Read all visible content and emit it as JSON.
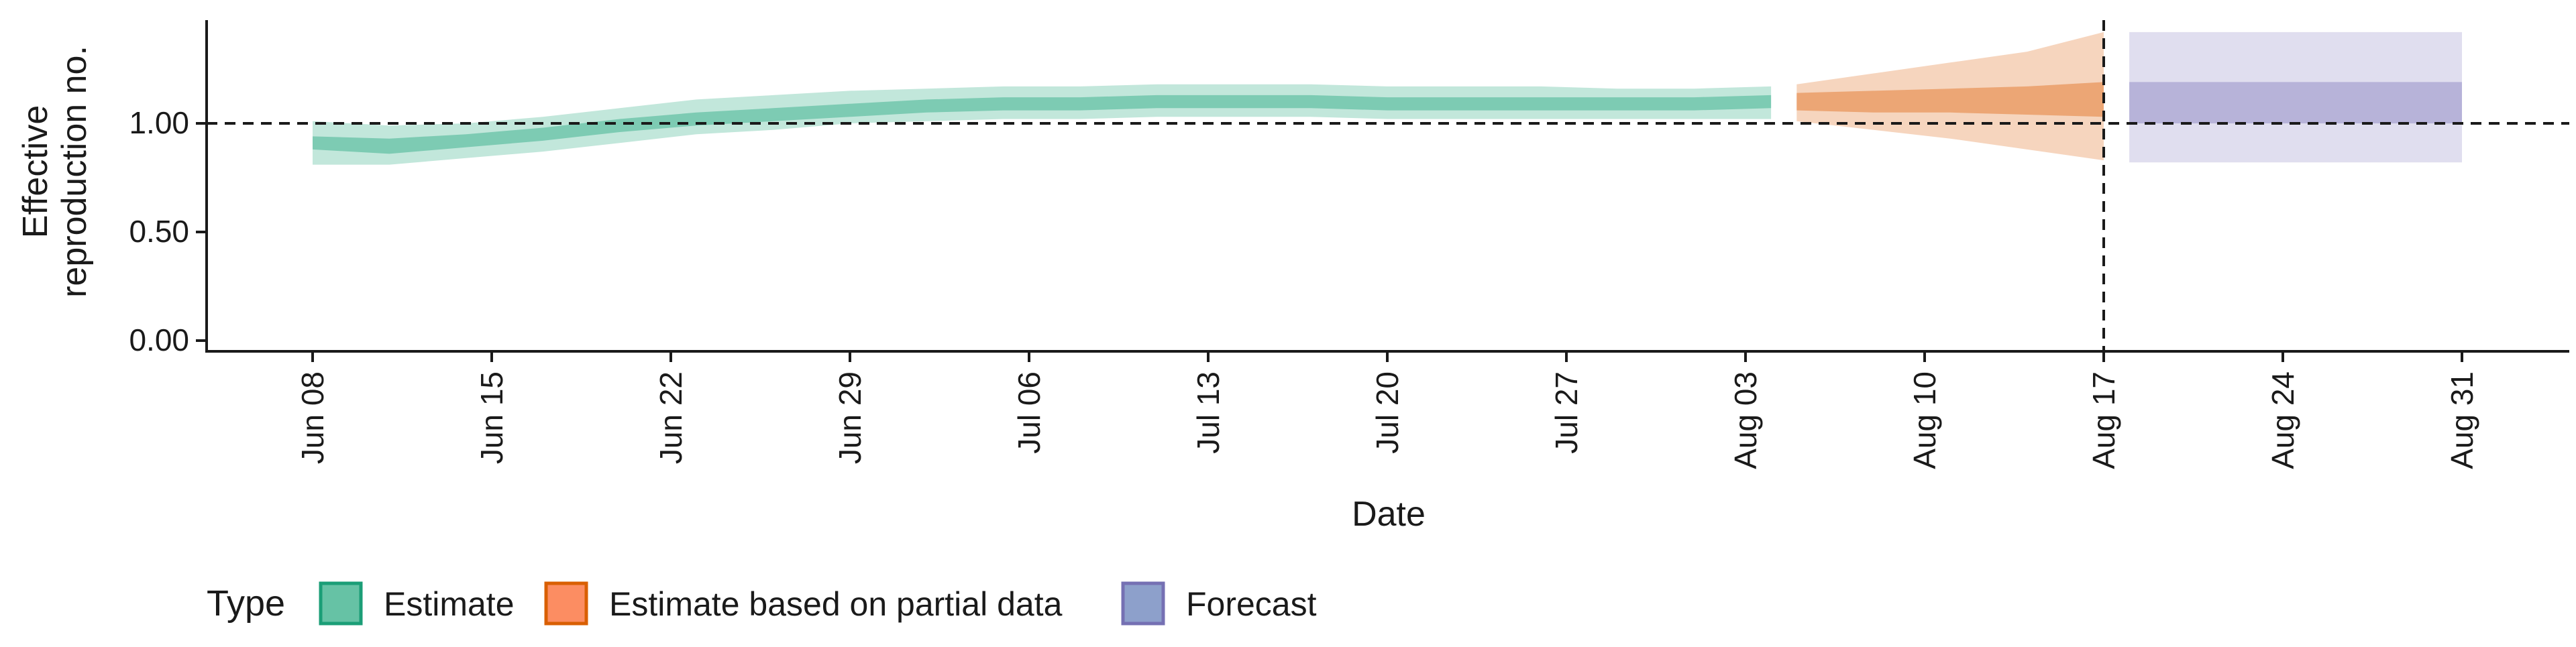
{
  "chart_data": {
    "type": "area",
    "xlabel": "Date",
    "ylabel_lines": [
      "Effective",
      "reproduction no."
    ],
    "x_ticks": [
      "Jun 08",
      "Jun 15",
      "Jun 22",
      "Jun 29",
      "Jul 06",
      "Jul 13",
      "Jul 20",
      "Jul 27",
      "Aug 03",
      "Aug 10",
      "Aug 17",
      "Aug 24",
      "Aug 31"
    ],
    "y_ticks": [
      "0.00",
      "0.50",
      "1.00"
    ],
    "ylim": [
      0,
      1.5
    ],
    "reference_line_y": 1.0,
    "reference_line_x": "Aug 17",
    "legend": {
      "title": "Type",
      "position": "bottom",
      "items": [
        {
          "label": "Estimate",
          "fill": "#66C2A5",
          "stroke": "#1B9E77"
        },
        {
          "label": "Estimate based on partial data",
          "fill": "#FC8D62",
          "stroke": "#D95F02"
        },
        {
          "label": "Forecast",
          "fill": "#8DA0CB",
          "stroke": "#7570B3"
        }
      ]
    },
    "colors": {
      "estimate": "#66C2A5",
      "partial": "#E8955C",
      "forecast": "#A5A1D0"
    },
    "series": [
      {
        "name": "Estimate",
        "dates": [
          "Jun 08",
          "Jun 11",
          "Jun 14",
          "Jun 17",
          "Jun 20",
          "Jun 23",
          "Jun 26",
          "Jun 29",
          "Jul 02",
          "Jul 05",
          "Jul 08",
          "Jul 11",
          "Jul 14",
          "Jul 17",
          "Jul 20",
          "Jul 23",
          "Jul 26",
          "Jul 29",
          "Aug 01",
          "Aug 04"
        ],
        "median": [
          0.91,
          0.89,
          0.92,
          0.95,
          0.99,
          1.02,
          1.04,
          1.06,
          1.08,
          1.09,
          1.09,
          1.1,
          1.1,
          1.1,
          1.09,
          1.09,
          1.09,
          1.09,
          1.09,
          1.1
        ],
        "lower50": [
          0.88,
          0.86,
          0.89,
          0.92,
          0.96,
          0.99,
          1.01,
          1.03,
          1.05,
          1.06,
          1.06,
          1.07,
          1.07,
          1.07,
          1.06,
          1.06,
          1.06,
          1.06,
          1.06,
          1.07
        ],
        "upper50": [
          0.94,
          0.93,
          0.95,
          0.98,
          1.02,
          1.05,
          1.07,
          1.09,
          1.11,
          1.12,
          1.12,
          1.13,
          1.13,
          1.13,
          1.12,
          1.12,
          1.12,
          1.12,
          1.12,
          1.13
        ],
        "lower90": [
          0.81,
          0.81,
          0.84,
          0.87,
          0.91,
          0.95,
          0.97,
          1.0,
          1.01,
          1.02,
          1.02,
          1.03,
          1.03,
          1.03,
          1.02,
          1.02,
          1.02,
          1.02,
          1.02,
          1.02
        ],
        "upper90": [
          1.01,
          0.99,
          1.0,
          1.03,
          1.07,
          1.11,
          1.13,
          1.15,
          1.16,
          1.17,
          1.17,
          1.18,
          1.18,
          1.18,
          1.17,
          1.17,
          1.17,
          1.16,
          1.16,
          1.17
        ]
      },
      {
        "name": "Estimate based on partial data",
        "dates": [
          "Aug 05",
          "Aug 08",
          "Aug 11",
          "Aug 14",
          "Aug 17"
        ],
        "median": [
          1.1,
          1.1,
          1.11,
          1.11,
          1.12
        ],
        "lower50": [
          1.06,
          1.05,
          1.05,
          1.04,
          1.03
        ],
        "upper50": [
          1.14,
          1.15,
          1.16,
          1.17,
          1.19
        ],
        "lower90": [
          1.01,
          0.97,
          0.93,
          0.88,
          0.83
        ],
        "upper90": [
          1.18,
          1.23,
          1.28,
          1.33,
          1.42
        ]
      },
      {
        "name": "Forecast",
        "dates": [
          "Aug 18",
          "Aug 31"
        ],
        "median": [
          1.12,
          1.12
        ],
        "lower50": [
          1.0,
          1.0
        ],
        "upper50": [
          1.19,
          1.19
        ],
        "lower90": [
          0.82,
          0.82
        ],
        "upper90": [
          1.42,
          1.42
        ]
      }
    ]
  }
}
